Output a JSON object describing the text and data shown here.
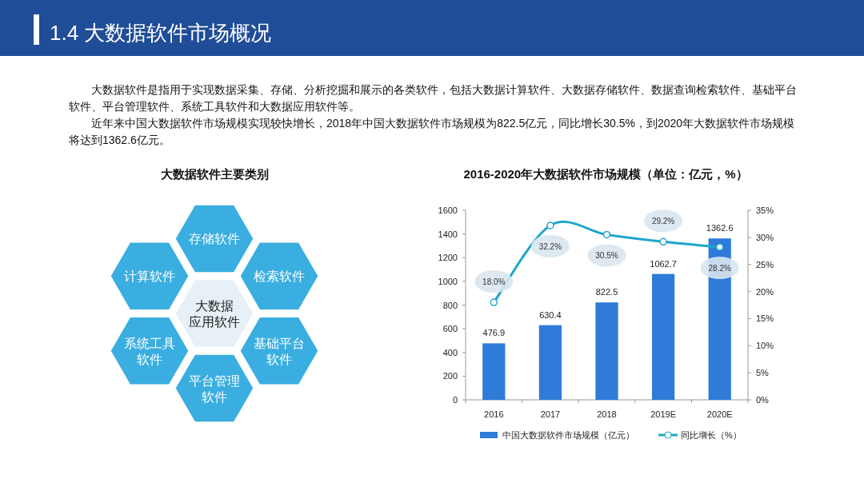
{
  "chart_data": [
    {
      "type": "other",
      "title": "1.4 大数据软件市场概况",
      "annotations": [
        "大数据软件是指用于实现数据采集、存储、分析挖掘和展示的各类软件，包括大数据计算软件、大数据存储软件、数据查询检索软件、基础平台软件、平台管理软件、系统工具软件和大数据应用软件等。",
        "近年来中国大数据软件市场规模实现较快增长，2018年中国大数据软件市场规模为822.5亿元，同比增长30.5%，到2020年大数据软件市场规模将达到1362.6亿元。"
      ]
    },
    {
      "type": "other",
      "title": "大数据软件主要类别",
      "annotations": [
        "大数据应用软件",
        "存储软件",
        "检索软件",
        "基础平台软件",
        "平台管理软件",
        "系统工具软件",
        "计算软件"
      ]
    },
    {
      "type": "bar",
      "title": "2016-2020年大数据软件市场规模（单位：亿元，%）",
      "categories": [
        "2016",
        "2017",
        "2018",
        "2019E",
        "2020E"
      ],
      "series": [
        {
          "name": "中国大数据软件市场规模（亿元）",
          "color": "#2e7bd9",
          "values": [
            476.9,
            630.4,
            822.5,
            1062.7,
            1362.6
          ],
          "value_labels": [
            "476.9",
            "630.4",
            "822.5",
            "1062.7",
            "1362.6"
          ]
        },
        {
          "name": "同比增长（%）",
          "type": "line",
          "axis": "y2",
          "color": "#1ea6cc",
          "marker": "circle",
          "values": [
            18.0,
            32.2,
            30.5,
            29.2,
            28.2
          ],
          "value_labels": [
            "18.0%",
            "32.2%",
            "30.5%",
            "29.2%",
            "28.2%"
          ]
        }
      ],
      "ylim": [
        0,
        1600
      ],
      "yticks": [
        0,
        200,
        400,
        600,
        800,
        1000,
        1200,
        1400,
        1600
      ],
      "y2lim": [
        0,
        35
      ],
      "y2ticks": [
        {
          "value": 0,
          "label": "0%"
        },
        {
          "value": 5,
          "label": "5%"
        },
        {
          "value": 10,
          "label": "10%"
        },
        {
          "value": 15,
          "label": "15%"
        },
        {
          "value": 20,
          "label": "20%"
        },
        {
          "value": 25,
          "label": "25%"
        },
        {
          "value": 30,
          "label": "30%"
        },
        {
          "value": 35,
          "label": "35%"
        }
      ],
      "legend": "bottom"
    }
  ]
}
